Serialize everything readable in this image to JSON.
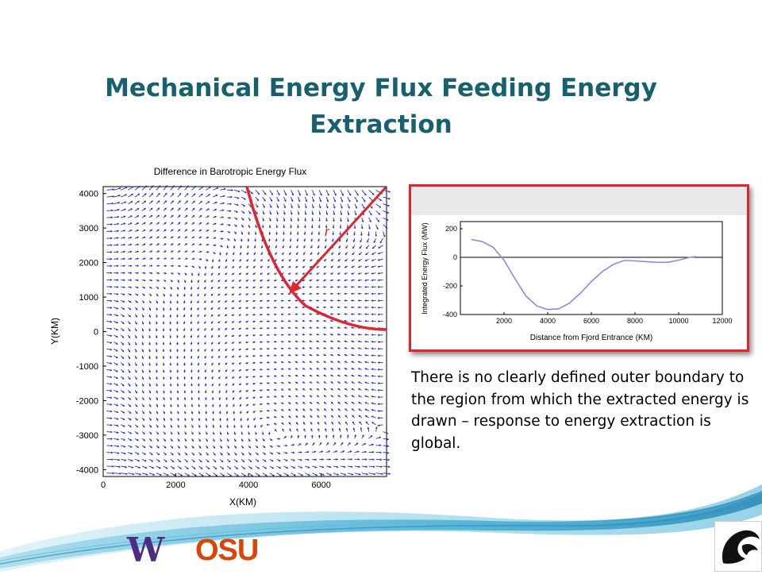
{
  "slide": {
    "title_line1": "Mechanical Energy Flux Feeding Energy",
    "title_line2": "Extraction",
    "body_text": "There is no clearly defined outer boundary to the region from which the extracted energy is drawn – response to energy extraction is global.",
    "annotation_label": "r",
    "logos": {
      "uw": "W",
      "osu": "OSU"
    }
  },
  "colors": {
    "title": "#17606f",
    "vectors": "#1f2bd6",
    "annotation": "#e0262c",
    "curve": "#8a8ae6",
    "frame": "#e0262c"
  },
  "chart_data": [
    {
      "type": "quiver",
      "title": "Difference in Barotropic Energy Flux",
      "xlabel": "X(KM)",
      "ylabel": "Y(KM)",
      "xticks": [
        0,
        2000,
        4000,
        6000
      ],
      "yticks": [
        4000,
        3000,
        2000,
        1000,
        0,
        -1000,
        -2000,
        -3000,
        -4000
      ],
      "xlim": [
        0,
        7800
      ],
      "ylim": [
        -4200,
        4200
      ],
      "grid": false,
      "arrow_color": "blue"
    },
    {
      "type": "line",
      "xlabel": "Distance from Fjord Entrance (KM)",
      "ylabel": "Integrated Energy Flux (MW)",
      "xticks": [
        2000,
        4000,
        6000,
        8000,
        10000,
        12000
      ],
      "yticks": [
        200,
        0,
        -200,
        -400
      ],
      "xlim": [
        0,
        12000
      ],
      "ylim": [
        -400,
        250
      ],
      "x": [
        500,
        1000,
        1500,
        2000,
        2500,
        3000,
        3500,
        4000,
        4500,
        5000,
        5500,
        6000,
        6500,
        7000,
        7500,
        8000,
        8500,
        9000,
        9500,
        10000,
        10500,
        10800
      ],
      "y": [
        125,
        110,
        70,
        -20,
        -150,
        -270,
        -340,
        -365,
        -360,
        -320,
        -250,
        -170,
        -100,
        -50,
        -22,
        -25,
        -30,
        -35,
        -35,
        -20,
        0,
        5
      ]
    }
  ]
}
